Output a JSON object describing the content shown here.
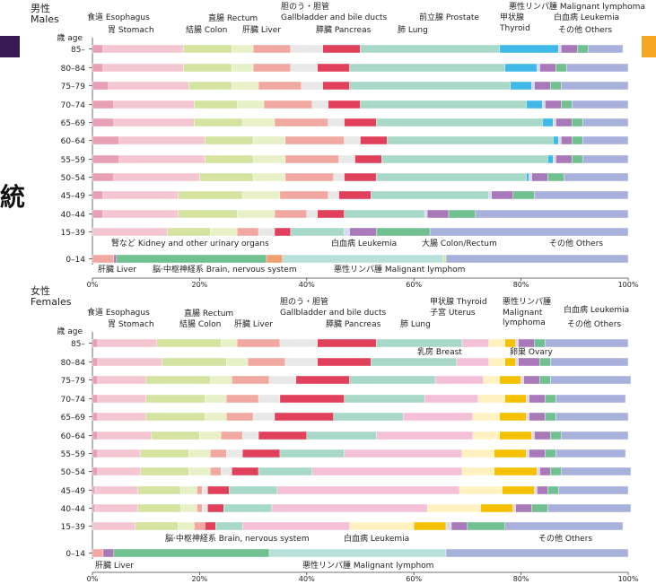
{
  "decor": {
    "side_glyph": "統",
    "left_square_color": "#3a1a55",
    "right_square_color": "#f5a623"
  },
  "colors": {
    "esophagus": "#e8a0b4",
    "stomach": "#f4c6d2",
    "colon": "#d4e3a0",
    "rectum": "#e8f0c8",
    "liver": "#f0a8a0",
    "gallbladder": "#e8e8e8",
    "pancreas": "#e0405a",
    "lung": "#a8d8c8",
    "prostate": "#40b8e8",
    "thyroid": "#d8d8f0",
    "lymphoma": "#a878b8",
    "leukemia": "#70c090",
    "others": "#a8b0dc",
    "breast": "#f4c0d8",
    "uterus": "#fff2c0",
    "ovary": "#f5c000",
    "kidney": "#f0a070",
    "brain": "#b8e0d8"
  },
  "chart_data": [
    {
      "type": "bar",
      "orientation": "horizontal",
      "stacked": true,
      "section_label": "男性\nMales",
      "age_header": "歳 age",
      "xlim": [
        0,
        100
      ],
      "xtick_labels": [
        "0%",
        "20%",
        "40%",
        "60%",
        "80%",
        "100%"
      ],
      "categories": [
        "85–",
        "80–84",
        "75–79",
        "70–74",
        "65–69",
        "60–64",
        "55–59",
        "50–54",
        "45–49",
        "40–44",
        "15–39",
        "0–14"
      ],
      "series": [
        {
          "name": "食道 Esophagus",
          "key": "esophagus",
          "values": [
            2,
            2,
            3,
            4,
            4,
            5,
            5,
            4,
            2,
            2,
            0,
            0
          ]
        },
        {
          "name": "胃 Stomach",
          "key": "stomach",
          "values": [
            15,
            15,
            15,
            15,
            15,
            16,
            16,
            16,
            14,
            14,
            14,
            0
          ]
        },
        {
          "name": "結腸 Colon",
          "key": "colon",
          "values": [
            9,
            9,
            8,
            8,
            9,
            9,
            9,
            10,
            12,
            11,
            8,
            0
          ]
        },
        {
          "name": "直腸 Rectum",
          "key": "rectum",
          "values": [
            4,
            4,
            5,
            5,
            6,
            6,
            6,
            6,
            7,
            7,
            5,
            0
          ]
        },
        {
          "name": "肝臓 Liver",
          "key": "liver",
          "values": [
            7,
            7,
            8,
            9,
            10,
            11,
            10,
            9,
            9,
            6,
            4,
            4
          ]
        },
        {
          "name": "胆のう・胆管 Gallbladder and bile ducts",
          "key": "gallbladder",
          "values": [
            6,
            5,
            4,
            3,
            3,
            3,
            3,
            2,
            2,
            2,
            3,
            0
          ]
        },
        {
          "name": "膵臓 Pancreas",
          "key": "pancreas",
          "values": [
            7,
            6,
            5,
            6,
            6,
            5,
            5,
            6,
            6,
            5,
            3,
            0
          ]
        },
        {
          "name": "肺 Lung",
          "key": "lung",
          "values": [
            26,
            29,
            30,
            31,
            31,
            31,
            31,
            28,
            22,
            15,
            10,
            0
          ]
        },
        {
          "name": "前立腺 Prostate",
          "key": "prostate",
          "values": [
            11,
            6,
            4,
            3,
            2,
            1,
            1,
            0.5,
            0,
            0,
            0,
            0
          ]
        },
        {
          "name": "甲状腺 Thyroid",
          "key": "thyroid",
          "values": [
            0.5,
            0.5,
            0.5,
            0.5,
            0.5,
            0.5,
            0.5,
            0.5,
            0.5,
            0.5,
            1,
            0
          ]
        },
        {
          "name": "悪性リンパ腫 Malignant lymphoma",
          "key": "lymphoma",
          "values": [
            3,
            3,
            3,
            3,
            3,
            2,
            3,
            3,
            4,
            4,
            5,
            0.5
          ]
        },
        {
          "name": "白血病 Leukemia",
          "key": "leukemia",
          "values": [
            2,
            2,
            2,
            2,
            2,
            2,
            2,
            3,
            4,
            5,
            10,
            28
          ]
        },
        {
          "name": "腎など Kidney and other urinary organs",
          "key": "kidney",
          "values": [
            0,
            0,
            0,
            0,
            0,
            0,
            0,
            0,
            0,
            0,
            0,
            3
          ]
        },
        {
          "name": "脳・中枢神経系 Brain, nervous system",
          "key": "brain",
          "values": [
            0,
            0,
            0,
            0,
            0,
            0,
            0,
            0,
            0,
            0,
            0,
            30
          ]
        },
        {
          "name": "大腸 Colon/Rectum",
          "key": "colon",
          "values": [
            0,
            0,
            0,
            0,
            0,
            0,
            0,
            0,
            0,
            0,
            0,
            0.5
          ]
        },
        {
          "name": "その他 Others",
          "key": "others",
          "values": [
            6.5,
            11.5,
            12.5,
            10.5,
            8.5,
            8.5,
            8.5,
            12,
            17.5,
            28.5,
            37,
            34
          ]
        }
      ]
    },
    {
      "type": "bar",
      "orientation": "horizontal",
      "stacked": true,
      "section_label": "女性\nFemales",
      "age_header": "歳 age",
      "xlim": [
        0,
        100
      ],
      "xtick_labels": [
        "0%",
        "20%",
        "40%",
        "60%",
        "80%",
        "100%"
      ],
      "categories": [
        "85–",
        "80–84",
        "75–79",
        "70–74",
        "65–69",
        "60–64",
        "55–59",
        "50–54",
        "45–49",
        "40–44",
        "15–39",
        "0–14"
      ],
      "series": [
        {
          "name": "食道 Esophagus",
          "key": "esophagus",
          "values": [
            1,
            1,
            1,
            1,
            1,
            1,
            1,
            1,
            0.5,
            0.5,
            0,
            0
          ]
        },
        {
          "name": "胃 Stomach",
          "key": "stomach",
          "values": [
            11,
            12,
            9,
            9,
            9,
            10,
            8,
            8,
            8,
            8,
            8,
            0
          ]
        },
        {
          "name": "結腸 Colon",
          "key": "colon",
          "values": [
            12,
            12,
            12,
            11,
            11,
            9,
            9,
            9,
            8,
            8,
            8,
            0
          ]
        },
        {
          "name": "直腸 Rectum",
          "key": "rectum",
          "values": [
            3,
            4,
            4,
            4,
            4,
            4,
            4,
            4,
            3,
            3,
            3,
            0
          ]
        },
        {
          "name": "肝臓 Liver",
          "key": "liver",
          "values": [
            8,
            7,
            7,
            6,
            5,
            4,
            3,
            2,
            1,
            1,
            2,
            2
          ]
        },
        {
          "name": "胆のう・胆管 Gallbladder and bile ducts",
          "key": "gallbladder",
          "values": [
            7,
            6,
            5,
            4,
            4,
            3,
            3,
            2,
            1,
            1,
            0,
            0
          ]
        },
        {
          "name": "膵臓 Pancreas",
          "key": "pancreas",
          "values": [
            11,
            10,
            10,
            12,
            11,
            9,
            7,
            5,
            4,
            3,
            2,
            0
          ]
        },
        {
          "name": "肺 Lung",
          "key": "lung",
          "values": [
            16,
            16,
            16,
            15,
            13,
            13,
            12,
            10,
            9,
            9,
            5,
            0
          ]
        },
        {
          "name": "乳房 Breast",
          "key": "breast",
          "values": [
            5,
            6,
            9,
            10,
            13,
            18,
            22,
            28,
            34,
            29,
            20,
            0
          ]
        },
        {
          "name": "子宮 Uterus",
          "key": "uterus",
          "values": [
            3,
            3,
            3,
            5,
            5,
            5,
            6,
            6,
            8,
            10,
            12,
            0
          ]
        },
        {
          "name": "卵巣 Ovary",
          "key": "ovary",
          "values": [
            2,
            2,
            4,
            4,
            5,
            6,
            6,
            8,
            6,
            6,
            6,
            0
          ]
        },
        {
          "name": "甲状腺 Thyroid",
          "key": "thyroid",
          "values": [
            0.5,
            0.5,
            0.5,
            0.5,
            0.5,
            0.5,
            0.5,
            0.5,
            0.5,
            0.5,
            1,
            0
          ]
        },
        {
          "name": "悪性リンパ腫 Malignant lymphoma",
          "key": "lymphoma",
          "values": [
            3,
            4,
            3,
            3,
            3,
            3,
            3,
            2,
            2,
            3,
            3,
            2
          ]
        },
        {
          "name": "白血病 Leukemia",
          "key": "leukemia",
          "values": [
            2,
            2,
            2,
            2,
            2,
            2,
            2,
            2,
            2,
            3,
            7,
            29
          ]
        },
        {
          "name": "脳・中枢神経系 Brain, nervous system",
          "key": "brain",
          "values": [
            0,
            0,
            0,
            0,
            0,
            0,
            0,
            0,
            0,
            0,
            0,
            33
          ]
        },
        {
          "name": "その他 Others",
          "key": "others",
          "values": [
            15.5,
            14.5,
            15,
            13,
            13.5,
            12.5,
            13,
            13,
            13,
            15.5,
            22,
            34
          ]
        }
      ]
    }
  ],
  "annotations": {
    "males": {
      "esophagus": "食道 Esophagus",
      "stomach": "胃 Stomach",
      "colon": "結腸 Colon",
      "rectum": "直腸 Rectum",
      "liver": "肝臓 Liver",
      "gall_jp": "胆のう・胆管",
      "gall_en": "Gallbladder and bile ducts",
      "pancreas": "膵臓 Pancreas",
      "lung": "肺 Lung",
      "prostate": "前立腺 Prostate",
      "thyroid_jp": "甲状腺",
      "thyroid_en": "Thyroid",
      "lymphoma": "悪性リンパ腫 Malignant lymphoma",
      "leukemia": "白血病 Leukemia",
      "others": "その他 Others",
      "kidney": "腎など Kidney and other urinary organs",
      "child_leukemia": "白血病 Leukemia",
      "child_colon": "大腸 Colon/Rectum",
      "child_others": "その他 Others",
      "child_liver": "肝臓 Liver",
      "child_brain": "脳·中枢神経系 Brain, nervous system",
      "child_lymphoma": "悪性リンパ腫 Malignant lymphom"
    },
    "females": {
      "esophagus": "食道 Esophagus",
      "stomach": "胃 Stomach",
      "colon": "結腸 Colon",
      "rectum": "直腸 Rectum",
      "liver": "肝臓 Liver",
      "gall_jp": "胆のう・胆管",
      "gall_en": "Gallbladder and bile ducts",
      "pancreas": "膵臓 Pancreas",
      "lung": "肺 Lung",
      "thyroid": "甲状腺 Thyroid",
      "uterus": "子宮 Uterus",
      "lymph_jp": "悪性リンパ腫",
      "lymph_en1": "Malignant",
      "lymph_en2": "lymphoma",
      "leukemia": "白血病 Leukemia",
      "others": "その他 Others",
      "breast": "乳房 Breast",
      "ovary": "卵巣 Ovary",
      "child_brain": "脳·中枢神経系 Brain, nervous system",
      "child_leukemia": "白血病 Leukemia",
      "child_others": "その他 Others",
      "child_liver": "肝臓 Liver",
      "child_lymphoma": "悪性リンパ腫 Malignant lymphom"
    }
  }
}
